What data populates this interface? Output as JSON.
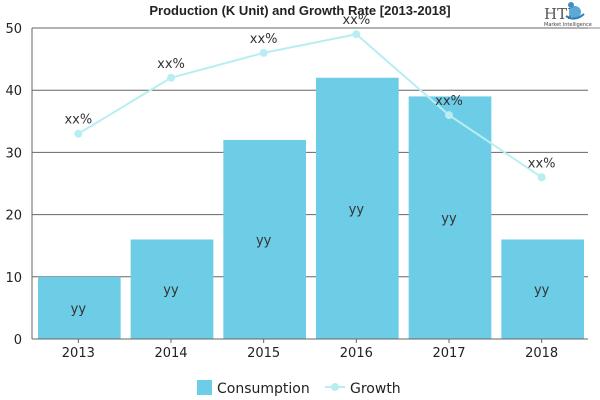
{
  "chart_data": {
    "type": "bar",
    "title": "Production (K Unit) and Growth Rate [2013-2018]",
    "xlabel": "",
    "ylabel": "",
    "categories": [
      "2013",
      "2014",
      "2015",
      "2016",
      "2017",
      "2018"
    ],
    "ylim": [
      0,
      50
    ],
    "yticks": [
      0,
      10,
      20,
      30,
      40,
      50
    ],
    "grid": true,
    "legend_position": "bottom",
    "series": [
      {
        "name": "Consumption",
        "type": "bar",
        "color": "#6dcce6",
        "values": [
          10,
          16,
          32,
          42,
          39,
          16
        ],
        "labels": [
          "yy",
          "yy",
          "yy",
          "yy",
          "yy",
          "yy"
        ]
      },
      {
        "name": "Growth",
        "type": "line",
        "color": "#b8eef2",
        "values": [
          33,
          42,
          46,
          49,
          36,
          26
        ],
        "labels": [
          "xx%",
          "xx%",
          "xx%",
          "xx%",
          "xx%",
          "xx%"
        ]
      }
    ]
  },
  "logo": {
    "main": "HTF",
    "sub": "Market Intelligence"
  }
}
